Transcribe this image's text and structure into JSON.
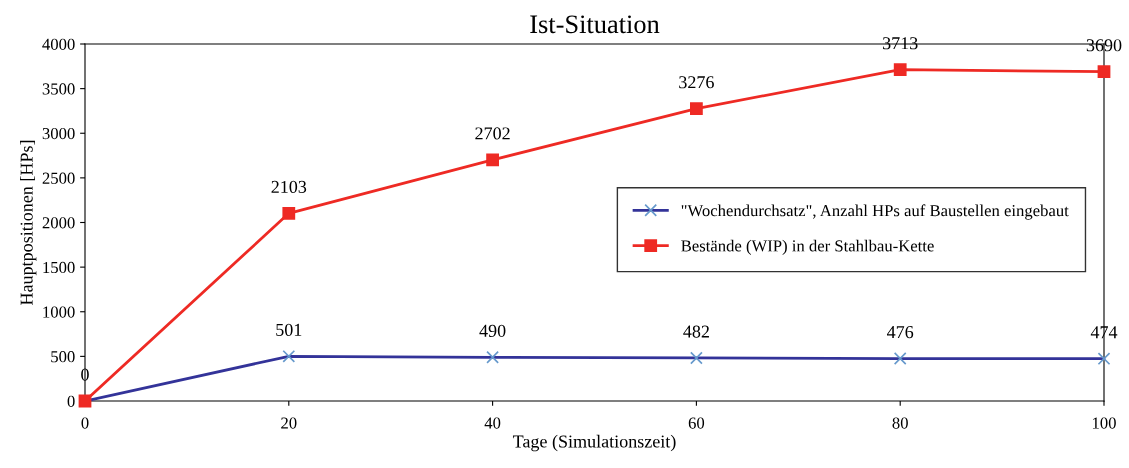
{
  "chart_data": {
    "type": "line",
    "title": "Ist-Situation",
    "xlabel": "Tage (Simulationszeit)",
    "ylabel": "Hauptpositionen [HPs]",
    "x": [
      0,
      20,
      40,
      60,
      80,
      100
    ],
    "series": [
      {
        "name": "\"Wochendurchsatz\", Anzahl HPs auf Baustellen eingebaut",
        "color": "#333399",
        "marker": "cross",
        "values": [
          0,
          501,
          490,
          482,
          476,
          474
        ],
        "value_labels": [
          "0",
          "501",
          "490",
          "482",
          "476",
          "474"
        ]
      },
      {
        "name": "Bestände (WIP) in der Stahlbau-Kette",
        "color": "#ee2a24",
        "marker": "square",
        "values": [
          0,
          2103,
          2702,
          3276,
          3713,
          3690
        ],
        "value_labels": [
          null,
          "2103",
          "2702",
          "3276",
          "3713",
          "3690"
        ]
      }
    ],
    "xlim": [
      0,
      100
    ],
    "xticks": [
      0,
      20,
      40,
      60,
      80,
      100
    ],
    "ylim": [
      0,
      4000
    ],
    "yticks": [
      0,
      500,
      1000,
      1500,
      2000,
      2500,
      3000,
      3500,
      4000
    ],
    "grid": false,
    "legend": "right",
    "line_style": "solid"
  }
}
